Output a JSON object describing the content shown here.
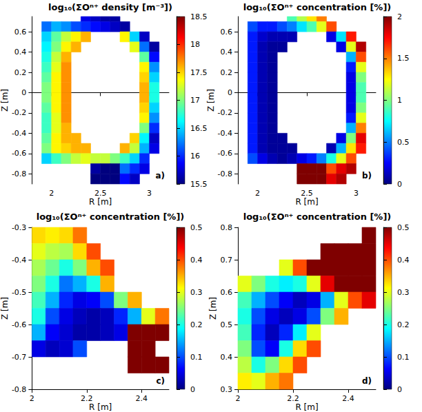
{
  "chart_data": [
    {
      "type": "heatmap",
      "title": "log₁₀(ΣOⁿ⁺ density [m⁻³])",
      "annotation": "a)",
      "xlabel": "R [m]",
      "ylabel": "Z [m]",
      "xlim": [
        1.8,
        3.2
      ],
      "xticks": [
        2,
        2.5,
        3
      ],
      "ylim": [
        -0.9,
        0.75
      ],
      "yticks": [
        -0.8,
        -0.6,
        -0.4,
        -0.2,
        0,
        0.2,
        0.4,
        0.6
      ],
      "colorbar_lim": [
        15.5,
        18.5
      ],
      "colorbar_ticks": [
        15.5,
        16,
        16.5,
        17,
        17.5,
        18,
        18.5
      ],
      "x": [
        1.85,
        1.95,
        2.05,
        2.15,
        2.25,
        2.35,
        2.45,
        2.55,
        2.65,
        2.75,
        2.85,
        2.95,
        3.05,
        3.15
      ],
      "y": [
        0.75,
        0.65,
        0.55,
        0.45,
        0.35,
        0.25,
        0.15,
        0.05,
        -0.05,
        -0.15,
        -0.25,
        -0.35,
        -0.45,
        -0.55,
        -0.65,
        -0.75,
        -0.85
      ],
      "cells": [
        [
          null,
          null,
          null,
          null,
          null,
          15.8,
          15.7,
          15.6,
          15.6,
          null,
          null,
          null,
          null,
          null
        ],
        [
          null,
          16.2,
          16.4,
          16.3,
          16.1,
          16.0,
          15.9,
          15.8,
          15.7,
          15.6,
          null,
          null,
          null,
          null
        ],
        [
          null,
          16.5,
          16.9,
          17.2,
          17.4,
          17.6,
          null,
          null,
          null,
          17.4,
          16.5,
          15.7,
          null,
          null
        ],
        [
          null,
          16.6,
          17.0,
          17.4,
          17.6,
          null,
          null,
          null,
          null,
          null,
          17.3,
          16.2,
          15.6,
          null
        ],
        [
          null,
          16.7,
          17.2,
          17.6,
          null,
          null,
          null,
          null,
          null,
          null,
          null,
          16.9,
          15.9,
          null
        ],
        [
          null,
          16.8,
          17.3,
          17.7,
          null,
          null,
          null,
          null,
          null,
          null,
          null,
          17.4,
          16.3,
          null
        ],
        [
          null,
          16.9,
          17.4,
          17.7,
          null,
          null,
          null,
          null,
          null,
          null,
          null,
          17.5,
          16.5,
          null
        ],
        [
          null,
          17.0,
          17.4,
          17.7,
          null,
          null,
          null,
          null,
          null,
          null,
          null,
          17.6,
          16.7,
          null
        ],
        [
          null,
          17.0,
          17.4,
          17.7,
          null,
          null,
          null,
          null,
          null,
          null,
          null,
          17.6,
          16.7,
          null
        ],
        [
          null,
          16.9,
          17.4,
          17.7,
          null,
          null,
          null,
          null,
          null,
          null,
          null,
          17.5,
          16.5,
          null
        ],
        [
          null,
          16.8,
          17.3,
          17.7,
          null,
          null,
          null,
          null,
          null,
          null,
          null,
          17.4,
          16.3,
          null
        ],
        [
          null,
          16.8,
          17.3,
          17.6,
          null,
          null,
          null,
          null,
          null,
          null,
          null,
          17.0,
          16.0,
          null
        ],
        [
          null,
          16.9,
          17.4,
          17.6,
          17.6,
          null,
          null,
          null,
          null,
          null,
          17.5,
          16.6,
          15.7,
          null
        ],
        [
          null,
          17.0,
          17.4,
          17.5,
          17.6,
          17.6,
          null,
          null,
          null,
          17.6,
          17.2,
          16.4,
          15.8,
          null
        ],
        [
          null,
          16.5,
          16.8,
          17.0,
          17.2,
          17.3,
          17.2,
          17.2,
          17.0,
          16.8,
          16.5,
          16.0,
          null,
          null
        ],
        [
          null,
          null,
          null,
          null,
          null,
          null,
          15.6,
          15.5,
          15.5,
          16.2,
          16.0,
          15.8,
          null,
          null
        ],
        [
          null,
          null,
          null,
          null,
          null,
          null,
          15.5,
          15.5,
          15.5,
          15.9,
          15.7,
          null,
          null,
          null
        ]
      ]
    },
    {
      "type": "heatmap",
      "title": "log₁₀(ΣOⁿ⁺ concentration [%])",
      "annotation": "b)",
      "xlabel": "R [m]",
      "ylabel": "Z [m]",
      "xlim": [
        1.8,
        3.2
      ],
      "xticks": [
        2,
        2.5,
        3
      ],
      "ylim": [
        -0.9,
        0.75
      ],
      "yticks": [
        -0.8,
        -0.6,
        -0.4,
        -0.2,
        0,
        0.2,
        0.4,
        0.6
      ],
      "colorbar_lim": [
        0,
        2
      ],
      "colorbar_ticks": [
        0,
        0.5,
        1,
        1.5,
        2
      ],
      "x": [
        1.85,
        1.95,
        2.05,
        2.15,
        2.25,
        2.35,
        2.45,
        2.55,
        2.65,
        2.75,
        2.85,
        2.95,
        3.05,
        3.15
      ],
      "y": [
        0.75,
        0.65,
        0.55,
        0.45,
        0.35,
        0.25,
        0.15,
        0.05,
        -0.05,
        -0.15,
        -0.25,
        -0.35,
        -0.45,
        -0.55,
        -0.65,
        -0.75,
        -0.85
      ],
      "cells": [
        [
          null,
          null,
          null,
          null,
          null,
          0.9,
          1.1,
          1.3,
          1.5,
          null,
          null,
          null,
          null,
          null
        ],
        [
          null,
          0.4,
          0.3,
          0.3,
          0.4,
          0.5,
          0.7,
          0.9,
          1.2,
          1.6,
          null,
          null,
          null,
          null
        ],
        [
          null,
          0.3,
          0.15,
          0.1,
          0.1,
          0.1,
          null,
          null,
          null,
          0.2,
          0.7,
          1.7,
          null,
          null
        ],
        [
          null,
          0.3,
          0.1,
          0.05,
          0.05,
          null,
          null,
          null,
          null,
          null,
          0.2,
          1.2,
          1.9,
          null
        ],
        [
          null,
          0.3,
          0.1,
          0.05,
          null,
          null,
          null,
          null,
          null,
          null,
          null,
          0.6,
          1.6,
          null
        ],
        [
          null,
          0.3,
          0.1,
          0.05,
          null,
          null,
          null,
          null,
          null,
          null,
          null,
          0.3,
          1.2,
          null
        ],
        [
          null,
          0.3,
          0.1,
          0.05,
          null,
          null,
          null,
          null,
          null,
          null,
          null,
          0.2,
          1.0,
          null
        ],
        [
          null,
          0.3,
          0.1,
          0.05,
          null,
          null,
          null,
          null,
          null,
          null,
          null,
          0.2,
          0.9,
          null
        ],
        [
          null,
          0.3,
          0.1,
          0.05,
          null,
          null,
          null,
          null,
          null,
          null,
          null,
          0.2,
          0.9,
          null
        ],
        [
          null,
          0.3,
          0.1,
          0.05,
          null,
          null,
          null,
          null,
          null,
          null,
          null,
          0.2,
          1.0,
          null
        ],
        [
          null,
          0.3,
          0.1,
          0.05,
          null,
          null,
          null,
          null,
          null,
          null,
          null,
          0.3,
          1.2,
          null
        ],
        [
          null,
          0.3,
          0.1,
          0.05,
          null,
          null,
          null,
          null,
          null,
          null,
          null,
          0.6,
          1.5,
          null
        ],
        [
          null,
          0.3,
          0.1,
          0.05,
          0.05,
          null,
          null,
          null,
          null,
          null,
          0.2,
          1.0,
          1.8,
          null
        ],
        [
          null,
          0.3,
          0.1,
          0.05,
          0.05,
          0.05,
          null,
          null,
          null,
          0.1,
          0.6,
          1.3,
          1.7,
          null
        ],
        [
          null,
          0.4,
          0.2,
          0.1,
          0.05,
          0.1,
          0.2,
          0.3,
          0.5,
          0.8,
          1.2,
          1.6,
          null,
          null
        ],
        [
          null,
          null,
          null,
          null,
          null,
          null,
          2,
          2,
          2,
          1.6,
          1.8,
          1.9,
          null,
          null
        ],
        [
          null,
          null,
          null,
          null,
          null,
          null,
          2,
          2,
          2,
          1.8,
          1.9,
          null,
          null,
          null
        ]
      ]
    },
    {
      "type": "heatmap",
      "title": "log₁₀(ΣOⁿ⁺ concentration [%])",
      "annotation": "c)",
      "xlabel": "R [m]",
      "ylabel": "Z [m]",
      "xlim": [
        2,
        2.5
      ],
      "xticks": [
        2,
        2.2,
        2.4
      ],
      "ylim": [
        -0.8,
        -0.3
      ],
      "yticks": [
        -0.8,
        -0.7,
        -0.6,
        -0.5,
        -0.4,
        -0.3
      ],
      "colorbar_lim": [
        0,
        0.5
      ],
      "colorbar_ticks": [
        0,
        0.1,
        0.2,
        0.3,
        0.4,
        0.5
      ],
      "x": [
        2.025,
        2.075,
        2.125,
        2.175,
        2.225,
        2.275,
        2.325,
        2.375,
        2.425,
        2.475
      ],
      "y": [
        -0.325,
        -0.375,
        -0.425,
        -0.475,
        -0.525,
        -0.575,
        -0.625,
        -0.675,
        -0.725,
        -0.775
      ],
      "cells": [
        [
          0.33,
          0.32,
          0.33,
          0.38,
          null,
          null,
          null,
          null,
          null,
          null
        ],
        [
          0.3,
          0.28,
          0.27,
          0.33,
          0.4,
          null,
          null,
          null,
          null,
          null
        ],
        [
          0.27,
          0.24,
          0.2,
          0.25,
          0.35,
          0.4,
          null,
          null,
          null,
          null
        ],
        [
          0.25,
          0.2,
          0.12,
          0.15,
          0.2,
          0.35,
          null,
          null,
          null,
          null
        ],
        [
          0.22,
          0.15,
          0.08,
          0.05,
          0.06,
          0.1,
          0.25,
          0.35,
          null,
          null
        ],
        [
          0.2,
          0.1,
          0.05,
          0.03,
          0.02,
          0.03,
          0.08,
          0.15,
          0.3,
          0.38
        ],
        [
          0.15,
          0.06,
          0.04,
          0.02,
          0.02,
          0.03,
          0.05,
          0.5,
          0.5,
          0.5
        ],
        [
          0.05,
          0.03,
          0.04,
          0.1,
          null,
          null,
          null,
          0.5,
          0.5,
          null
        ],
        [
          null,
          null,
          null,
          null,
          null,
          null,
          null,
          0.5,
          0.5,
          0.5
        ],
        [
          null,
          null,
          null,
          null,
          null,
          null,
          null,
          null,
          null,
          null
        ]
      ]
    },
    {
      "type": "heatmap",
      "title": "log₁₀(ΣOⁿ⁺ concentration [%])",
      "annotation": "d)",
      "xlabel": "R [m]",
      "ylabel": "Z [m]",
      "xlim": [
        2,
        2.5
      ],
      "xticks": [
        2,
        2.2,
        2.4
      ],
      "ylim": [
        0.3,
        0.8
      ],
      "yticks": [
        0.3,
        0.4,
        0.5,
        0.6,
        0.7,
        0.8
      ],
      "colorbar_lim": [
        0,
        0.5
      ],
      "colorbar_ticks": [
        0,
        0.1,
        0.2,
        0.3,
        0.4,
        0.5
      ],
      "x": [
        2.025,
        2.075,
        2.125,
        2.175,
        2.225,
        2.275,
        2.325,
        2.375,
        2.425,
        2.475
      ],
      "y": [
        0.775,
        0.725,
        0.675,
        0.625,
        0.575,
        0.525,
        0.475,
        0.425,
        0.375,
        0.325
      ],
      "cells": [
        [
          null,
          null,
          null,
          null,
          null,
          null,
          null,
          null,
          null,
          0.5
        ],
        [
          null,
          null,
          null,
          null,
          null,
          null,
          0.5,
          0.5,
          0.5,
          0.5
        ],
        [
          null,
          null,
          null,
          0.3,
          0.4,
          0.5,
          0.5,
          0.5,
          0.5,
          0.5
        ],
        [
          0.3,
          0.25,
          0.2,
          0.18,
          0.2,
          0.3,
          0.45,
          0.5,
          0.5,
          0.5
        ],
        [
          0.22,
          0.15,
          0.1,
          0.06,
          0.03,
          0.05,
          0.15,
          0.3,
          0.4,
          0.45
        ],
        [
          0.2,
          0.1,
          0.05,
          0.03,
          0.05,
          0.1,
          0.25,
          0.35,
          null,
          null
        ],
        [
          0.22,
          0.08,
          0.03,
          0.08,
          0.18,
          0.3,
          null,
          null,
          null,
          null
        ],
        [
          0.25,
          0.1,
          0.06,
          0.2,
          0.33,
          0.4,
          null,
          null,
          null,
          null
        ],
        [
          0.28,
          0.2,
          0.25,
          0.33,
          0.4,
          null,
          null,
          null,
          null,
          null
        ],
        [
          0.32,
          0.3,
          0.35,
          0.38,
          null,
          null,
          null,
          null,
          null,
          null
        ]
      ]
    }
  ]
}
